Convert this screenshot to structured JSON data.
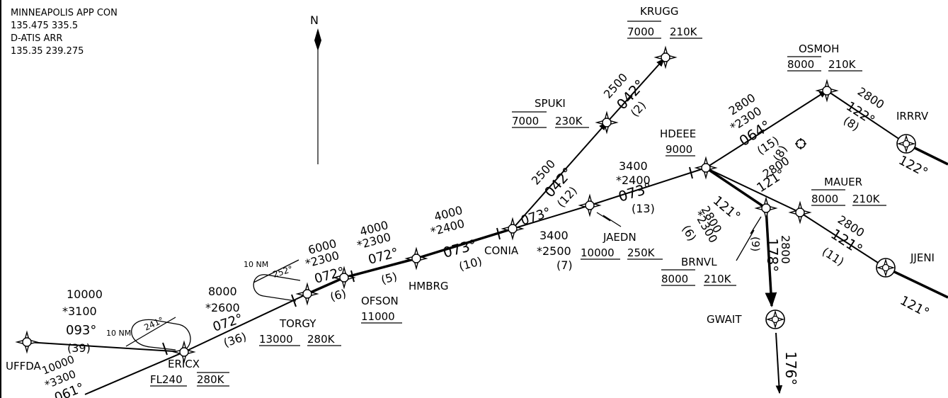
{
  "frequencies": {
    "approach_name": "MINNEAPOLIS APP CON",
    "approach_freqs": "135.475  335.5",
    "atis_name": "D-ATIS ARR",
    "atis_freqs": "135.35  239.275"
  },
  "north_label": "N",
  "fixes": {
    "ufffda": {
      "name": "UFFDA"
    },
    "ericx": {
      "name": "ERICX",
      "alt": "FL240",
      "speed": "280K"
    },
    "torgy": {
      "name": "TORGY",
      "alt": "13000",
      "speed": "280K"
    },
    "ofson": {
      "name": "OFSON",
      "alt": "11000"
    },
    "hmbrg": {
      "name": "HMBRG"
    },
    "conia": {
      "name": "CONIA"
    },
    "jaedn": {
      "name": "JAEDN",
      "alt": "10000",
      "speed": "250K"
    },
    "spuki": {
      "name": "SPUKI",
      "alt": "7000",
      "speed": "230K"
    },
    "krugg": {
      "name": "KRUGG",
      "alt": "7000",
      "speed": "210K"
    },
    "hdeee": {
      "name": "HDEEE",
      "alt": "9000"
    },
    "osmoh": {
      "name": "OSMOH",
      "alt": "8000",
      "speed": "210K"
    },
    "irrrv": {
      "name": "IRRRV"
    },
    "mauer": {
      "name": "MAUER",
      "alt": "8000",
      "speed": "210K"
    },
    "brnvl": {
      "name": "BRNVL",
      "alt": "8000",
      "speed": "210K"
    },
    "jjeni": {
      "name": "JJENI"
    },
    "gwait": {
      "name": "GWAIT"
    }
  },
  "legs": {
    "uffda_ericx": {
      "mea": "10000",
      "moca": "*3100",
      "course": "093°",
      "dist": "(39)"
    },
    "west_ericx": {
      "mea": "10000",
      "moca": "*3300",
      "course": "061°"
    },
    "ericx_torgy": {
      "mea": "8000",
      "moca": "*2600",
      "course": "072°",
      "dist": "(36)"
    },
    "torgy_ofson": {
      "mea": "6000",
      "moca": "*2300",
      "course": "072°",
      "dist": "(6)"
    },
    "ofson_hmbrg": {
      "mea": "4000",
      "moca": "*2300",
      "course": "072°",
      "dist": "(5)"
    },
    "hmbrg_conia": {
      "mea": "4000",
      "moca": "*2400",
      "course": "073°",
      "dist": "(10)"
    },
    "conia_jaedn": {
      "mea": "3400",
      "moca": "*2500",
      "course": "073°",
      "dist": "(7)"
    },
    "jaedn_hdeee": {
      "mea": "3400",
      "moca": "*2400",
      "course": "073°",
      "dist": "(13)"
    },
    "conia_spuki": {
      "mea": "2500",
      "course": "042°",
      "dist": "(12)"
    },
    "spuki_krugg": {
      "mea": "2500",
      "course": "042°",
      "dist": "(2)"
    },
    "hdeee_osmoh": {
      "mea": "2800",
      "moca": "*2300",
      "course": "064°",
      "dist": "(15)"
    },
    "osmoh_irrrv": {
      "mea": "2800",
      "course": "122°",
      "dist": "(8)"
    },
    "irrrv_out": {
      "course": "122°"
    },
    "hdeee_mauer": {
      "mea": "2800",
      "course": "121°",
      "dist": "(8)"
    },
    "hdeee_brnvl": {
      "course": "121°",
      "mea": "2800",
      "moca": "*2300",
      "dist": "(6)"
    },
    "mauer_jjeni": {
      "mea": "2800",
      "course": "121°",
      "dist": "(11)"
    },
    "jjeni_out": {
      "course": "121°"
    },
    "brnvl_gwait": {
      "dist": "(9)",
      "course": "178°",
      "mea": "2800"
    },
    "gwait_out": {
      "course": "176°"
    }
  },
  "holds": {
    "torgy": {
      "leg": "10 NM",
      "course": "252°"
    },
    "ericx": {
      "leg": "10 NM",
      "course": "241°"
    }
  }
}
